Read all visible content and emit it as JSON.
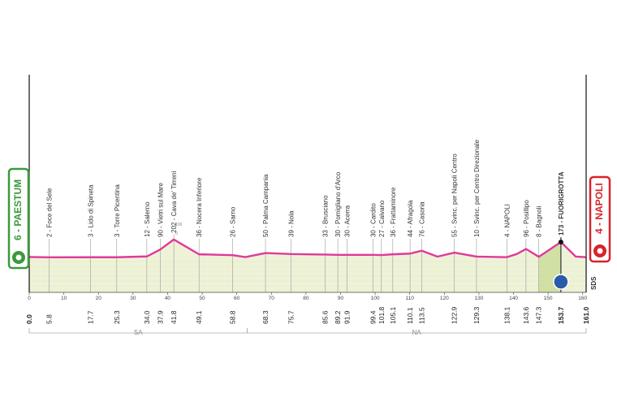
{
  "chart_data": {
    "type": "line",
    "x": [
      0,
      5.8,
      17.7,
      25.3,
      34.0,
      37.9,
      41.8,
      44.5,
      49.1,
      58.8,
      62.5,
      68.3,
      75.7,
      85.6,
      89.2,
      91.9,
      99.4,
      101.8,
      105.1,
      110.1,
      113.5,
      118,
      122.9,
      129.3,
      138.1,
      141,
      143.6,
      147.3,
      153.7,
      158,
      161.0
    ],
    "x_labels": [
      "0.0",
      "5.8",
      "17.7",
      "25.3",
      "34.0",
      "37.9",
      "41.8",
      null,
      "49.1",
      "58.8",
      null,
      "68.3",
      "75.7",
      "85.6",
      "89.2",
      "91.9",
      "99.4",
      "101.8",
      "105.1",
      "110.1",
      "113.5",
      null,
      "122.9",
      "129.3",
      "138.1",
      null,
      "143.6",
      "147.3",
      "153.7",
      null,
      "161.0"
    ],
    "values": [
      6,
      2,
      3,
      3,
      12,
      90,
      202,
      140,
      36,
      26,
      5,
      50,
      39,
      33,
      30,
      30,
      30,
      27,
      36,
      44,
      76,
      10,
      55,
      10,
      4,
      40,
      96,
      8,
      173,
      10,
      4
    ],
    "categories": [
      "6 - PAESTUM",
      "2 - Foce del Sele",
      "3 - Lido di Spineta",
      "3 - Torre Picentina",
      "12 - Salerno",
      "90 - Vietri sul Mare",
      "202 - Cava de' Tirreni",
      null,
      "36 - Nocera Inferiore",
      "26 - Sarno",
      null,
      "50 - Palma Campania",
      "39 - Nola",
      "33 - Brusciano",
      "30 - Pomigliano d'Arco",
      "30 - Acerra",
      "30 - Cardito",
      "27 - Caivano",
      "36 - Frattaminore",
      "44 - Afragola",
      "76 - Casoria",
      null,
      "55 - Svinc. per Napoli Centro",
      "10 - Svinc. per Centro Direzionale",
      "4 - NAPOLI",
      null,
      "96 - Posillipo",
      "8 - Bagnoli",
      "173 - FUORIGROTTA",
      null,
      "4 - NAPOLI"
    ],
    "color": "#e0399b",
    "fill_color": "#eef3d8",
    "start_color": "#3a9a3a",
    "finish_color": "#d8232a",
    "xlim": [
      0,
      161
    ],
    "xticks": [
      0,
      10,
      20,
      30,
      40,
      50,
      60,
      70,
      80,
      90,
      100,
      110,
      120,
      130,
      140,
      150,
      160
    ],
    "ylim": [
      -390,
      1800
    ],
    "yticks": [
      0,
      100
    ],
    "regions": [
      {
        "name": "SA",
        "start": 0,
        "end": 63
      },
      {
        "name": "NA",
        "start": 63,
        "end": 161
      }
    ],
    "finish_note": "SDS"
  }
}
